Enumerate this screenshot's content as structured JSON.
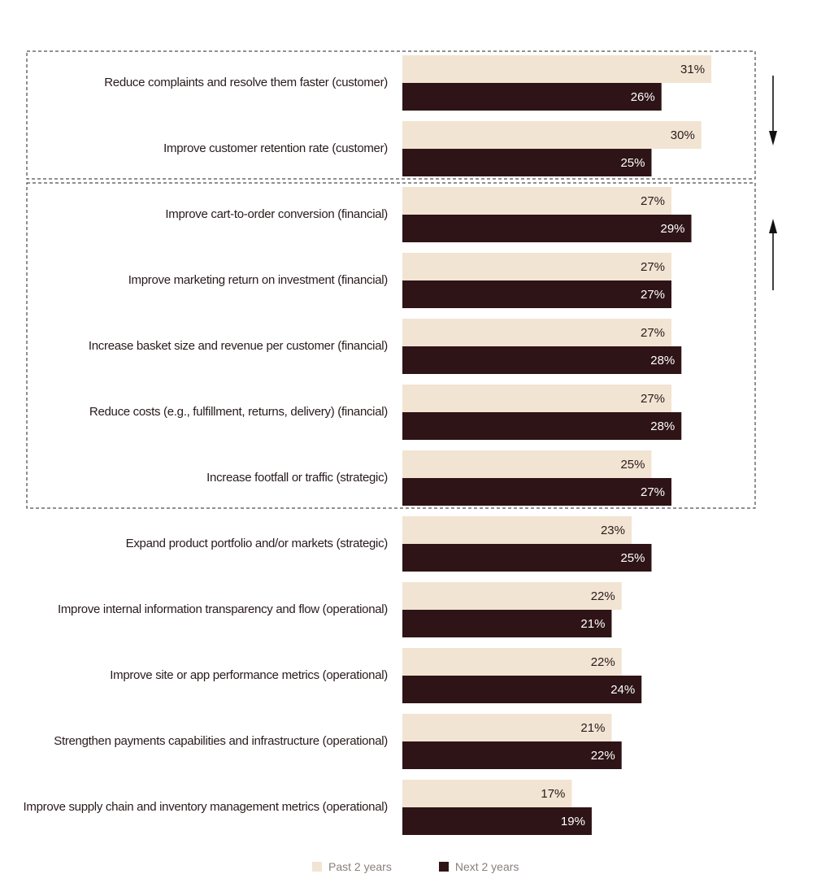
{
  "chart_data": {
    "type": "bar",
    "orientation": "horizontal",
    "categories": [
      "Reduce complaints and resolve them faster (customer)",
      "Improve customer retention rate (customer)",
      "Improve cart-to-order conversion (financial)",
      "Improve marketing return on investment (financial)",
      "Increase basket size and revenue per customer (financial)",
      "Reduce costs (e.g., fulfillment, returns, delivery) (financial)",
      "Increase footfall or traffic (strategic)",
      "Expand product portfolio and/or markets (strategic)",
      "Improve internal information transparency and flow (operational)",
      "Improve site or app performance metrics (operational)",
      "Strengthen payments capabilities and infrastructure (operational)",
      "Improve supply chain and inventory management metrics (operational)"
    ],
    "series": [
      {
        "name": "Past 2 years",
        "color": "#f2e4d2",
        "label_color": "#2a1a1c",
        "values": [
          31,
          30,
          27,
          27,
          27,
          27,
          25,
          23,
          22,
          22,
          21,
          17
        ],
        "labels": [
          "31%",
          "30%",
          "27%",
          "27%",
          "27%",
          "27%",
          "25%",
          "23%",
          "22%",
          "22%",
          "21%",
          "17%"
        ]
      },
      {
        "name": "Next 2 years",
        "color": "#2e1416",
        "label_color": "#ffffff",
        "values": [
          26,
          25,
          29,
          27,
          28,
          28,
          27,
          25,
          21,
          24,
          22,
          19
        ],
        "labels": [
          "26%",
          "25%",
          "29%",
          "27%",
          "28%",
          "28%",
          "27%",
          "25%",
          "21%",
          "24%",
          "22%",
          "19%"
        ]
      }
    ],
    "xlim": [
      0,
      31
    ],
    "grid": false,
    "legend_position": "bottom-center",
    "annotations": [
      {
        "type": "dashed-box",
        "categories": [
          0,
          1
        ],
        "arrow": "down"
      },
      {
        "type": "dashed-box",
        "categories": [
          2,
          3,
          4,
          5,
          6
        ],
        "arrow": "up"
      }
    ]
  },
  "legend": {
    "past_label": "Past 2 years",
    "next_label": "Next 2 years"
  }
}
